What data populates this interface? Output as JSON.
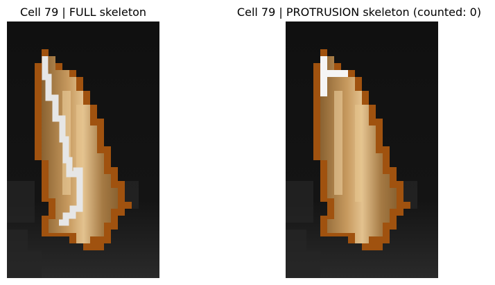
{
  "figure": {
    "left_panel": {
      "title": "Cell 79 | FULL skeleton",
      "image": "cell-crop-full-skeleton"
    },
    "right_panel": {
      "title": "Cell 79 | PROTRUSION skeleton (counted: 0)",
      "image": "cell-crop-protrusion-skeleton"
    },
    "colors": {
      "background": "#0b0b0b",
      "cell_fill": "#9a6f3c",
      "cell_highlight": "#e2c08d",
      "cell_outline": "#a0520f",
      "skeleton": "#eaeaea"
    }
  }
}
